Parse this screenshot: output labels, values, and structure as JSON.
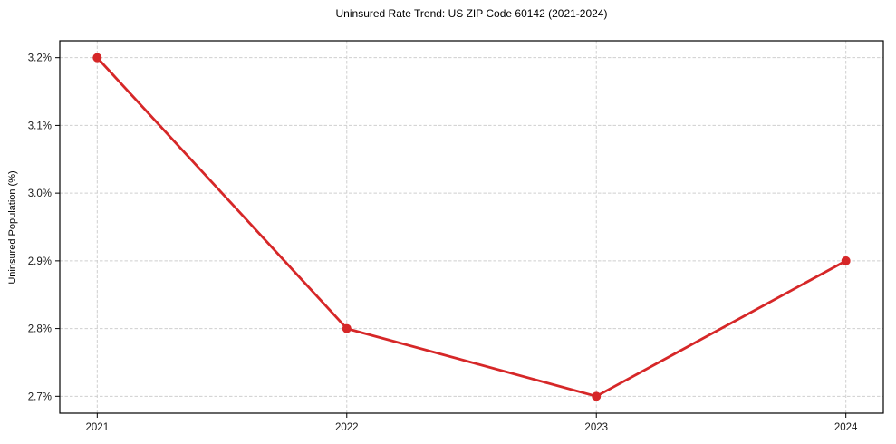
{
  "chart_data": {
    "type": "line",
    "title": "Uninsured Rate Trend: US ZIP Code 60142 (2021-2024)",
    "xlabel": "",
    "ylabel": "Uninsured Population (%)",
    "x": [
      2021,
      2022,
      2023,
      2024
    ],
    "x_tick_labels": [
      "2021",
      "2022",
      "2023",
      "2024"
    ],
    "values": [
      3.2,
      2.8,
      2.7,
      2.9
    ],
    "y_ticks": [
      2.7,
      2.8,
      2.9,
      3.0,
      3.1,
      3.2
    ],
    "y_tick_labels": [
      "2.7%",
      "2.8%",
      "2.9%",
      "3.0%",
      "3.1%",
      "3.2%"
    ],
    "xlim": [
      2020.85,
      2024.15
    ],
    "ylim": [
      2.675,
      3.225
    ],
    "grid": true,
    "legend_position": "none",
    "line_color": "#d62728",
    "marker": "circle",
    "grid_color": "#cfcfcf",
    "spine_color": "#000000",
    "tick_label_color": "#1a1a1a"
  }
}
